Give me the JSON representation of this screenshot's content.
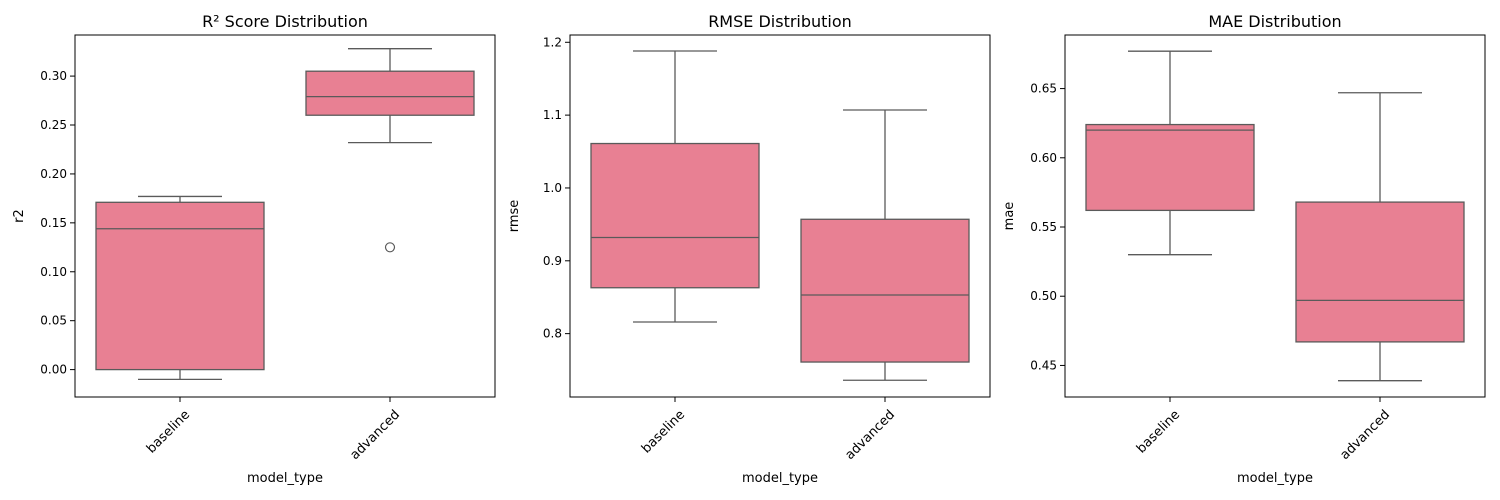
{
  "chart_data": [
    {
      "type": "box",
      "title": "R² Score Distribution",
      "xlabel": "model_type",
      "ylabel": "r2",
      "categories": [
        "baseline",
        "advanced"
      ],
      "ylim": [
        -0.028,
        0.342
      ],
      "yticks": [
        0.0,
        0.05,
        0.1,
        0.15,
        0.2,
        0.25,
        0.3
      ],
      "ytick_labels": [
        "0.00",
        "0.05",
        "0.10",
        "0.15",
        "0.20",
        "0.25",
        "0.30"
      ],
      "boxes": [
        {
          "category": "baseline",
          "whisker_low": -0.01,
          "q1": 0.0,
          "median": 0.144,
          "q3": 0.171,
          "whisker_high": 0.177,
          "outliers": []
        },
        {
          "category": "advanced",
          "whisker_low": 0.232,
          "q1": 0.26,
          "median": 0.279,
          "q3": 0.305,
          "whisker_high": 0.328,
          "outliers": [
            0.125
          ]
        }
      ]
    },
    {
      "type": "box",
      "title": "RMSE Distribution",
      "xlabel": "model_type",
      "ylabel": "rmse",
      "categories": [
        "baseline",
        "advanced"
      ],
      "ylim": [
        0.713,
        1.21
      ],
      "yticks": [
        0.8,
        0.9,
        1.0,
        1.1,
        1.2
      ],
      "ytick_labels": [
        "0.8",
        "0.9",
        "1.0",
        "1.1",
        "1.2"
      ],
      "boxes": [
        {
          "category": "baseline",
          "whisker_low": 0.816,
          "q1": 0.863,
          "median": 0.932,
          "q3": 1.061,
          "whisker_high": 1.188,
          "outliers": []
        },
        {
          "category": "advanced",
          "whisker_low": 0.736,
          "q1": 0.761,
          "median": 0.853,
          "q3": 0.957,
          "whisker_high": 1.107,
          "outliers": []
        }
      ]
    },
    {
      "type": "box",
      "title": "MAE Distribution",
      "xlabel": "model_type",
      "ylabel": "mae",
      "categories": [
        "baseline",
        "advanced"
      ],
      "ylim": [
        0.4272,
        0.6887
      ],
      "yticks": [
        0.45,
        0.5,
        0.55,
        0.6,
        0.65
      ],
      "ytick_labels": [
        "0.45",
        "0.50",
        "0.55",
        "0.60",
        "0.65"
      ],
      "boxes": [
        {
          "category": "baseline",
          "whisker_low": 0.53,
          "q1": 0.562,
          "median": 0.62,
          "q3": 0.624,
          "whisker_high": 0.677,
          "outliers": []
        },
        {
          "category": "advanced",
          "whisker_low": 0.439,
          "q1": 0.467,
          "median": 0.497,
          "q3": 0.568,
          "whisker_high": 0.647,
          "outliers": []
        }
      ]
    }
  ],
  "colors": {
    "box_fill": "#e88093",
    "box_edge": "#5a5a5a",
    "axis": "#000000",
    "text": "#000000"
  }
}
